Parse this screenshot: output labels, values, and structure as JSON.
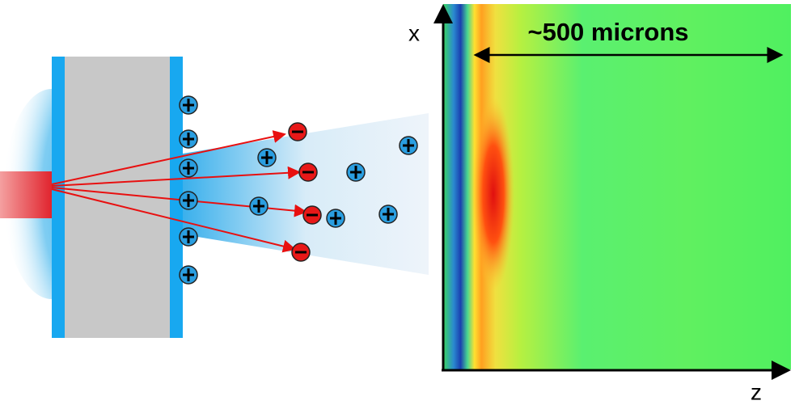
{
  "labels": {
    "x_axis": "x",
    "z_axis": "z",
    "scale": "~500 microns"
  }
}
